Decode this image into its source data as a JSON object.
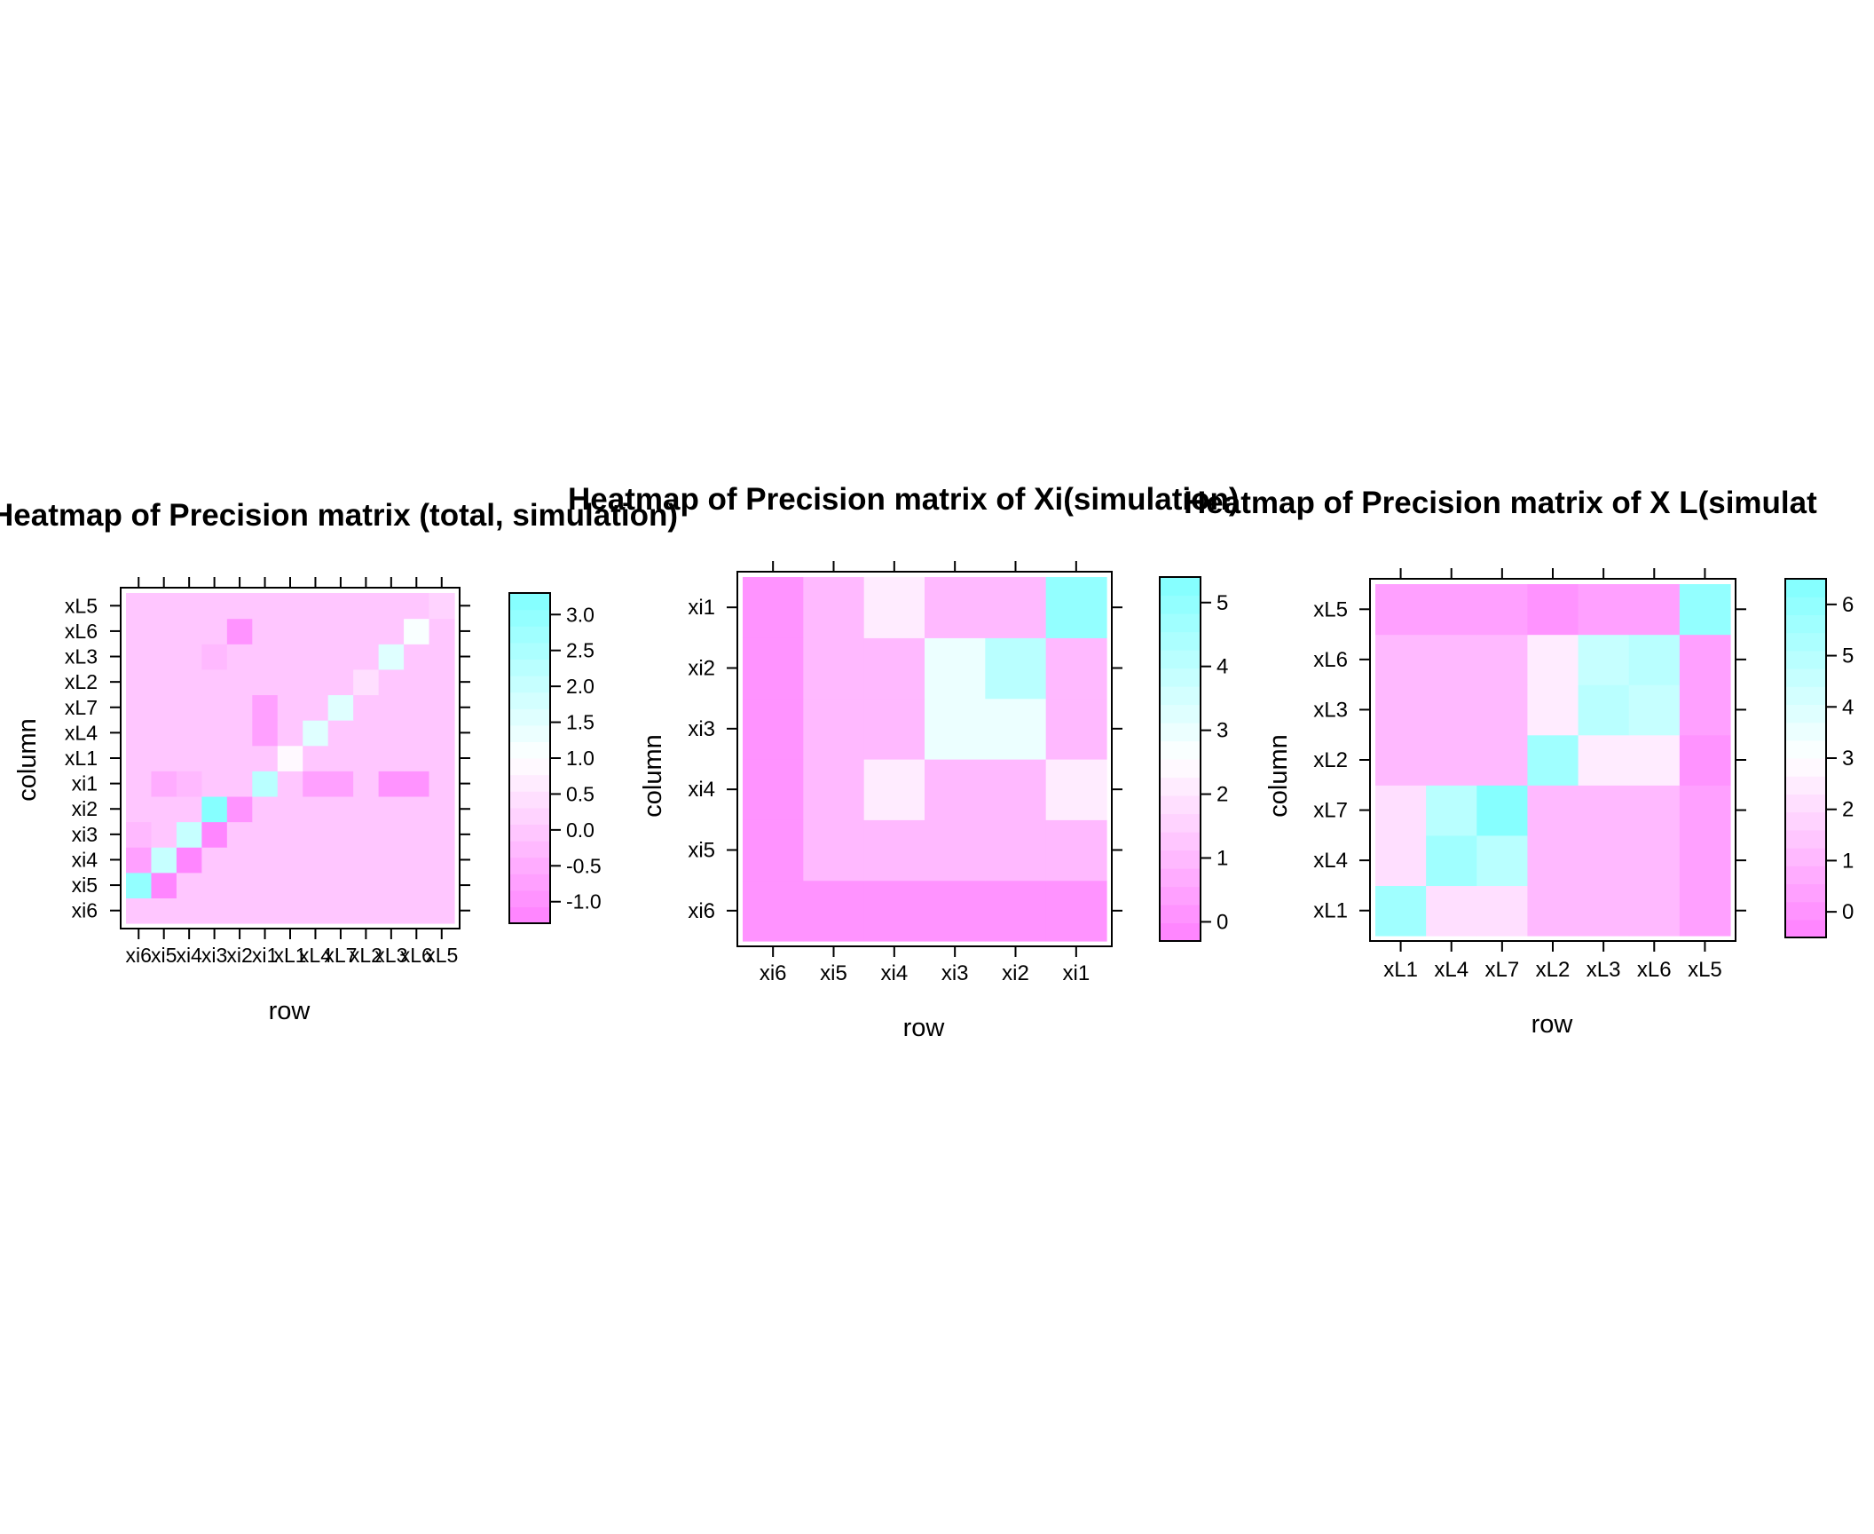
{
  "chart_data": [
    {
      "type": "heatmap",
      "title": "Heatmap of Precision matrix (total, simulation)",
      "xlabel": "row",
      "ylabel": "column",
      "x_categories": [
        "xi6",
        "xi5",
        "xi4",
        "xi3",
        "xi2",
        "xi1",
        "xL1",
        "xL4",
        "xL7",
        "xL2",
        "xL3",
        "xL6",
        "xL5"
      ],
      "y_categories": [
        "xi6",
        "xi5",
        "xi4",
        "xi3",
        "xi2",
        "xi1",
        "xL1",
        "xL4",
        "xL7",
        "xL2",
        "xL3",
        "xL6",
        "xL5"
      ],
      "colorbar": {
        "range": [
          -1.3,
          3.3
        ],
        "ticks": [
          -1.0,
          -0.5,
          0.0,
          0.5,
          1.0,
          1.5,
          2.0,
          2.5,
          3.0
        ],
        "tick_labels": [
          "-1.0",
          "-0.5",
          "0.0",
          "0.5",
          "1.0",
          "1.5",
          "2.0",
          "2.5",
          "3.0"
        ],
        "low_color": "#ff80ff",
        "high_color": "#80ffff"
      },
      "values": [
        [
          0,
          0,
          0,
          0,
          0,
          0,
          0,
          0,
          0,
          0,
          0,
          0,
          0
        ],
        [
          3.0,
          -1.2,
          0,
          0,
          0,
          0,
          0,
          0,
          0,
          0,
          0,
          0,
          0
        ],
        [
          -0.8,
          2.0,
          -1.2,
          0,
          0,
          0,
          0,
          0,
          0,
          0,
          0,
          0,
          0
        ],
        [
          -0.3,
          0,
          2.0,
          -1.1,
          0,
          0,
          0,
          0,
          0,
          0,
          0,
          0,
          0
        ],
        [
          0,
          0,
          0,
          3.2,
          -0.9,
          0,
          0,
          0,
          0,
          0,
          0,
          0,
          0
        ],
        [
          0,
          -0.4,
          -0.3,
          0,
          0,
          2.3,
          0,
          -0.7,
          -0.7,
          0,
          -0.9,
          -0.9,
          0
        ],
        [
          0,
          0,
          0,
          0,
          0,
          0,
          0.8,
          0,
          0,
          0,
          0,
          0,
          0
        ],
        [
          0,
          0,
          0,
          0,
          0,
          -0.8,
          0,
          1.6,
          0,
          0,
          0,
          0,
          0
        ],
        [
          0,
          0,
          0,
          0,
          0,
          -0.8,
          0,
          0,
          1.6,
          0,
          0,
          0,
          0
        ],
        [
          0,
          0,
          0,
          0,
          0,
          0,
          0,
          0,
          0,
          0.5,
          0,
          0,
          0
        ],
        [
          0,
          0,
          0,
          -0.3,
          0,
          0,
          0,
          0,
          0,
          0,
          1.6,
          0,
          0
        ],
        [
          0,
          0,
          0,
          0,
          -0.9,
          0,
          0,
          0,
          0,
          0,
          0,
          1.2,
          0
        ],
        [
          0,
          0,
          0,
          0,
          0,
          0,
          0,
          0,
          0,
          0,
          0,
          0,
          0.3
        ]
      ]
    },
    {
      "type": "heatmap",
      "title": "Heatmap of Precision matrix of Xi(simulation)",
      "xlabel": "row",
      "ylabel": "column",
      "x_categories": [
        "xi6",
        "xi5",
        "xi4",
        "xi3",
        "xi2",
        "xi1"
      ],
      "y_categories": [
        "xi6",
        "xi5",
        "xi4",
        "xi3",
        "xi2",
        "xi1"
      ],
      "colorbar": {
        "range": [
          -0.3,
          5.4
        ],
        "ticks": [
          0,
          1,
          2,
          3,
          4,
          5
        ],
        "tick_labels": [
          "0",
          "1",
          "2",
          "3",
          "4",
          "5"
        ],
        "low_color": "#ff80ff",
        "high_color": "#80ffff"
      },
      "values": [
        [
          0,
          0,
          0,
          0,
          0,
          0
        ],
        [
          0,
          1,
          1,
          1,
          1,
          1
        ],
        [
          0,
          1,
          2,
          1,
          1,
          2
        ],
        [
          0,
          1,
          1,
          3,
          3,
          1
        ],
        [
          0,
          1,
          1,
          3,
          4,
          1
        ],
        [
          0,
          1,
          2,
          1,
          1,
          5
        ]
      ]
    },
    {
      "type": "heatmap",
      "title": "Heatmap of Precision matrix of X L(simulat",
      "xlabel": "row",
      "ylabel": "column",
      "x_categories": [
        "xL1",
        "xL4",
        "xL7",
        "xL2",
        "xL3",
        "xL6",
        "xL5"
      ],
      "y_categories": [
        "xL1",
        "xL4",
        "xL7",
        "xL2",
        "xL3",
        "xL6",
        "xL5"
      ],
      "colorbar": {
        "range": [
          -0.5,
          6.5
        ],
        "ticks": [
          0,
          1,
          2,
          3,
          4,
          5,
          6
        ],
        "tick_labels": [
          "0",
          "1",
          "2",
          "3",
          "4",
          "5",
          "6"
        ],
        "low_color": "#ff80ff",
        "high_color": "#80ffff"
      },
      "values": [
        [
          5.5,
          2,
          2,
          1,
          1,
          1,
          0.5
        ],
        [
          2,
          5.5,
          5,
          1,
          1,
          1,
          0.5
        ],
        [
          2,
          5,
          6.3,
          1,
          1,
          1,
          0.5
        ],
        [
          1,
          1,
          1,
          5.5,
          2.5,
          2.5,
          0
        ],
        [
          1,
          1,
          1,
          2.5,
          5,
          4.5,
          0.5
        ],
        [
          1,
          1,
          1,
          2.5,
          4.5,
          5,
          0.5
        ],
        [
          0.5,
          0.5,
          0.5,
          0,
          0.5,
          0.5,
          6
        ]
      ]
    }
  ]
}
